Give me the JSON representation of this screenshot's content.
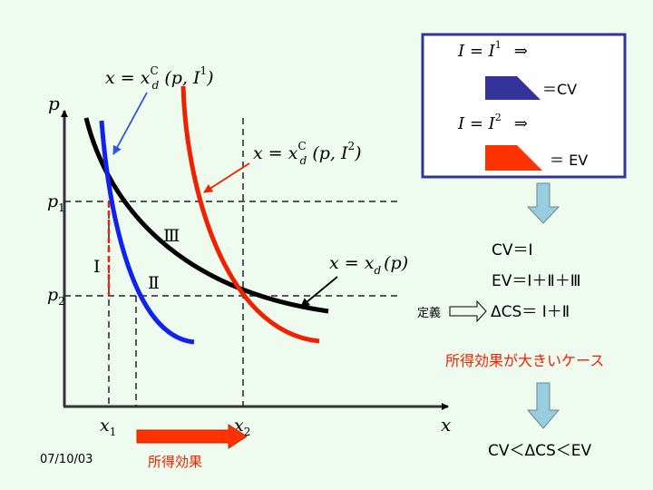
{
  "axes": {
    "y_label": "p",
    "x_label": "x",
    "p1_label": "p",
    "p1_sub": "1",
    "p2_label": "p",
    "p2_sub": "2",
    "x1_label": "x",
    "x1_sub": "1",
    "x2_label": "x",
    "x2_sub": "2"
  },
  "curves": {
    "hicks1": {
      "lhs": "x = x",
      "sup": "C",
      "sub": "d",
      "args": "(p, I",
      "exp": "1",
      "close": ")"
    },
    "hicks2": {
      "lhs": "x = x",
      "sup": "C",
      "sub": "d",
      "args": "(p, I",
      "exp": "2",
      "close": ")"
    },
    "marshall": {
      "lhs": "x = x",
      "sub": "d",
      "args": "(p)"
    }
  },
  "regions": {
    "I": "Ⅰ",
    "II": "Ⅱ",
    "III": "Ⅲ"
  },
  "legend": {
    "row1": {
      "lhs": "I = I",
      "exp": "1",
      "arrow": "⇒",
      "label": "＝CV"
    },
    "row2": {
      "lhs": "I = I",
      "exp": "2",
      "arrow": "⇒",
      "label": "＝ EV"
    },
    "colors": {
      "cv": "#333399",
      "ev": "#ff3300"
    }
  },
  "relations": {
    "cv": "CV＝Ⅰ",
    "ev": "EV＝Ⅰ＋Ⅱ＋Ⅲ",
    "definition_label": "定義",
    "cs": "ΔCS＝ Ⅰ＋Ⅱ",
    "case_title": "所得効果が大きいケース",
    "conclusion": "CV＜ΔCS＜EV"
  },
  "footer": {
    "date": "07/10/03",
    "income_effect": "所得効果"
  },
  "colors": {
    "background": "#eefbee",
    "blue_curve": "#1122ee",
    "red_curve": "#ee2200",
    "black_curve": "#000000",
    "accent_red": "#ee2200",
    "frame": "#333399",
    "arrow_fill": "#99ccdd"
  }
}
